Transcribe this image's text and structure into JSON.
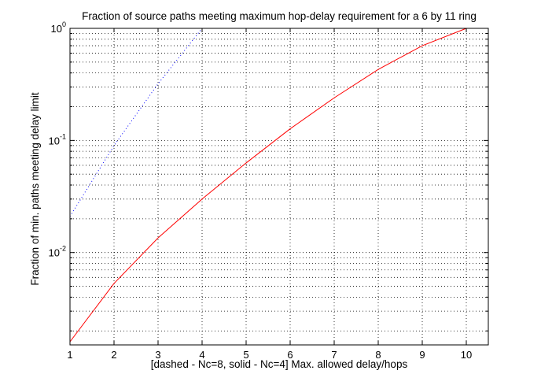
{
  "chart_data": {
    "type": "line",
    "title": "Fraction of source paths meeting maximum hop-delay requirement for a 6 by 11 ring",
    "xlabel": "[dashed - Nc=8, solid - Nc=4]   Max. allowed delay/hops",
    "ylabel": "Fraction of min. paths meeting delay limit",
    "xlim": [
      1,
      10.5
    ],
    "ylim": [
      0.0015,
      1
    ],
    "y_scale": "log",
    "grid": true,
    "x_ticks": [
      "1",
      "2",
      "3",
      "4",
      "5",
      "6",
      "7",
      "8",
      "9",
      "10"
    ],
    "y_ticks": [
      {
        "base": "10",
        "exp": "-2",
        "value": 0.01
      },
      {
        "base": "10",
        "exp": "-1",
        "value": 0.1
      },
      {
        "base": "10",
        "exp": "0",
        "value": 1
      }
    ],
    "series": [
      {
        "name": "Nc=8",
        "style": "dotted",
        "color": "#0000ff",
        "x": [
          1,
          2,
          3,
          4
        ],
        "y": [
          0.021,
          0.09,
          0.32,
          1.0
        ]
      },
      {
        "name": "Nc=4",
        "style": "solid",
        "color": "#ff0000",
        "x": [
          1,
          2,
          3,
          4,
          5,
          6,
          7,
          8,
          9,
          10
        ],
        "y": [
          0.0016,
          0.0053,
          0.0135,
          0.03,
          0.063,
          0.127,
          0.24,
          0.43,
          0.7,
          1.0
        ]
      }
    ]
  }
}
